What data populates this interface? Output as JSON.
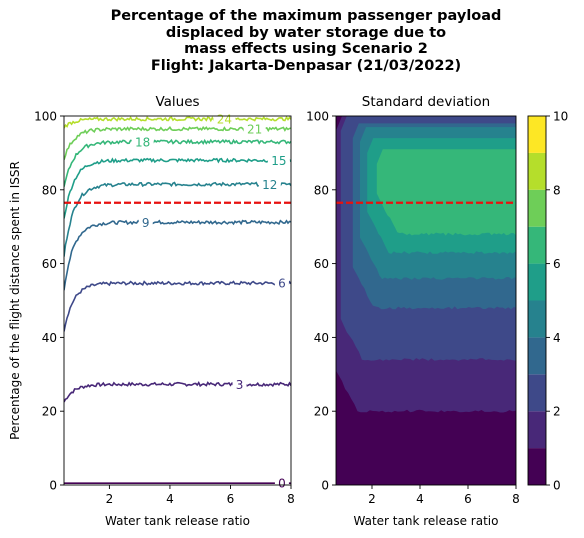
{
  "figure": {
    "title_lines": [
      "Percentage of the maximum passenger payload",
      "displaced by water storage due to",
      "mass effects using Scenario 2",
      "Flight: Jakarta-Denpasar (21/03/2022)"
    ]
  },
  "chart_data": [
    {
      "type": "contour",
      "title": "Values",
      "xlabel": "Water tank release ratio",
      "ylabel": "Percentage of the flight distance spent in ISSR",
      "xlim": [
        0.5,
        8
      ],
      "ylim": [
        0,
        100
      ],
      "xticks": [
        2,
        4,
        6,
        8
      ],
      "yticks": [
        0,
        20,
        40,
        60,
        80,
        100
      ],
      "threshold_line": {
        "y": 76.5,
        "color": "#e8110f",
        "style": "dashed"
      },
      "contours": [
        {
          "level": 0,
          "label": "0",
          "color": "#440154",
          "plateau": 0.5,
          "start": 0.5,
          "label_x": 7.7
        },
        {
          "level": 3,
          "label": "3",
          "color": "#482878",
          "plateau": 27.3,
          "start": 22.5,
          "label_x": 6.3
        },
        {
          "level": 6,
          "label": "6",
          "color": "#3e4989",
          "plateau": 54.7,
          "start": 42,
          "label_x": 7.7
        },
        {
          "level": 9,
          "label": "9",
          "color": "#31688e",
          "plateau": 71.2,
          "start": 53,
          "label_x": 3.2
        },
        {
          "level": 12,
          "label": "12",
          "color": "#26828e",
          "plateau": 81.5,
          "start": 62,
          "label_x": 7.3
        },
        {
          "level": 15,
          "label": "15",
          "color": "#1f9e89",
          "plateau": 88,
          "start": 72,
          "label_x": 7.6
        },
        {
          "level": 18,
          "label": "18",
          "color": "#35b779",
          "plateau": 93,
          "start": 80.5,
          "label_x": 3.1
        },
        {
          "level": 21,
          "label": "21",
          "color": "#6ece58",
          "plateau": 96.5,
          "start": 88.5,
          "label_x": 6.8
        },
        {
          "level": 24,
          "label": "24",
          "color": "#b5de2b",
          "plateau": 99.2,
          "start": 97,
          "label_x": 5.8
        }
      ]
    },
    {
      "type": "filled_contour",
      "title": "Standard deviation",
      "xlabel": "Water tank release ratio",
      "xlim": [
        0.5,
        8
      ],
      "ylim": [
        0,
        100
      ],
      "xticks": [
        2,
        4,
        6,
        8
      ],
      "yticks": [
        0,
        20,
        40,
        60,
        80,
        100
      ],
      "threshold_line": {
        "y": 76.5,
        "color": "#e8110f",
        "style": "dashed"
      },
      "colorbar": {
        "ticks": [
          0,
          2,
          4,
          6,
          8,
          10
        ],
        "levels": [
          0,
          1,
          2,
          3,
          4,
          5,
          6,
          7,
          8,
          9,
          10
        ],
        "colors": [
          "#440154",
          "#482878",
          "#3e4989",
          "#31688e",
          "#26828e",
          "#1f9e89",
          "#35b779",
          "#6ece58",
          "#b5de2b",
          "#fde725"
        ]
      }
    }
  ]
}
